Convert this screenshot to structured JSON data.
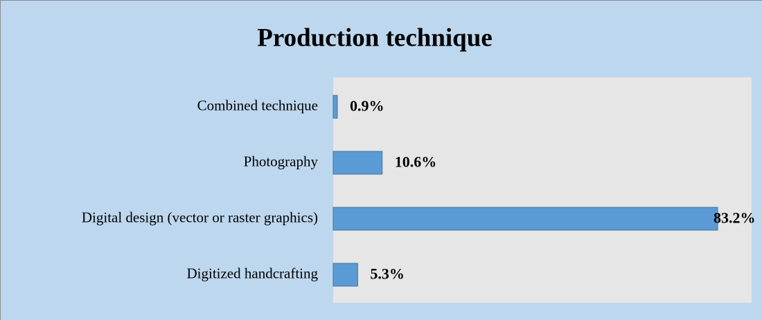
{
  "chart_data": {
    "type": "bar",
    "orientation": "horizontal",
    "title": "Production technique",
    "categories": [
      "Combined technique",
      "Photography",
      "Digital design (vector or raster graphics)",
      "Digitized handcrafting"
    ],
    "values": [
      0.9,
      10.6,
      83.2,
      5.3
    ],
    "value_labels": [
      "0.9%",
      "10.6%",
      "83.2%",
      "5.3%"
    ],
    "color": "#5b9bd5"
  }
}
